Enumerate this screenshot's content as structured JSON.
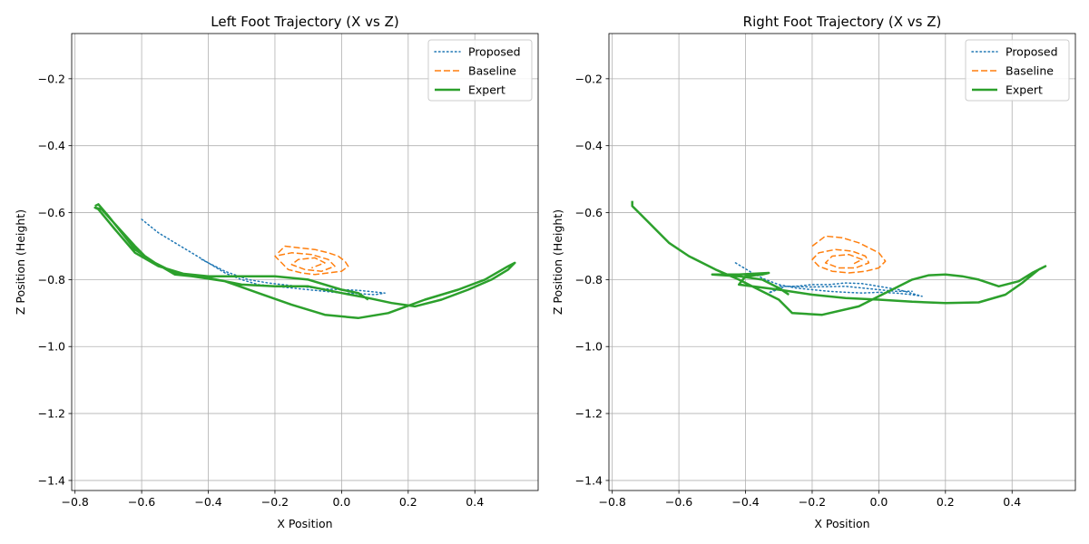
{
  "chart_data": [
    {
      "type": "line",
      "title": "Left Foot Trajectory (X vs Z)",
      "xlabel": "X Position",
      "ylabel": "Z Position (Height)",
      "xlim": [
        -0.81,
        0.59
      ],
      "ylim": [
        -1.43,
        -0.065
      ],
      "xticks": [
        -0.8,
        -0.6,
        -0.4,
        -0.2,
        0.0,
        0.2,
        0.4
      ],
      "xtick_labels": [
        "−0.8",
        "−0.6",
        "−0.4",
        "−0.2",
        "0.0",
        "0.2",
        "0.4"
      ],
      "yticks": [
        -0.2,
        -0.4,
        -0.6,
        -0.8,
        -1.0,
        -1.2,
        -1.4
      ],
      "ytick_labels": [
        "−0.2",
        "−0.4",
        "−0.6",
        "−0.8",
        "−1.0",
        "−1.2",
        "−1.4"
      ],
      "grid": true,
      "legend": "top-right",
      "series": [
        {
          "name": "Proposed",
          "color": "#1f77b4",
          "style": "dotted",
          "points": [
            [
              -0.6,
              -0.62
            ],
            [
              -0.55,
              -0.66
            ],
            [
              -0.5,
              -0.69
            ],
            [
              -0.45,
              -0.72
            ],
            [
              -0.4,
              -0.75
            ],
            [
              -0.35,
              -0.78
            ],
            [
              -0.3,
              -0.8
            ],
            [
              -0.25,
              -0.815
            ],
            [
              -0.2,
              -0.82
            ],
            [
              -0.15,
              -0.825
            ],
            [
              -0.1,
              -0.83
            ],
            [
              -0.05,
              -0.835
            ],
            [
              0.0,
              -0.84
            ],
            [
              0.05,
              -0.842
            ],
            [
              0.1,
              -0.845
            ],
            [
              0.13,
              -0.84
            ],
            [
              0.05,
              -0.832
            ],
            [
              -0.05,
              -0.828
            ],
            [
              -0.15,
              -0.818
            ],
            [
              -0.22,
              -0.81
            ],
            [
              -0.28,
              -0.8
            ],
            [
              -0.35,
              -0.775
            ],
            [
              -0.42,
              -0.74
            ]
          ]
        },
        {
          "name": "Baseline",
          "color": "#ff7f0e",
          "style": "dashed",
          "points": [
            [
              -0.19,
              -0.72
            ],
            [
              -0.17,
              -0.7
            ],
            [
              -0.13,
              -0.705
            ],
            [
              -0.08,
              -0.71
            ],
            [
              -0.04,
              -0.72
            ],
            [
              -0.01,
              -0.73
            ],
            [
              0.01,
              -0.745
            ],
            [
              0.02,
              -0.76
            ],
            [
              0.0,
              -0.775
            ],
            [
              -0.04,
              -0.78
            ],
            [
              -0.08,
              -0.785
            ],
            [
              -0.12,
              -0.78
            ],
            [
              -0.16,
              -0.77
            ],
            [
              -0.18,
              -0.75
            ],
            [
              -0.2,
              -0.73
            ],
            [
              -0.15,
              -0.72
            ],
            [
              -0.09,
              -0.725
            ],
            [
              -0.04,
              -0.74
            ],
            [
              -0.02,
              -0.76
            ],
            [
              -0.06,
              -0.775
            ],
            [
              -0.11,
              -0.77
            ],
            [
              -0.15,
              -0.755
            ],
            [
              -0.13,
              -0.74
            ],
            [
              -0.08,
              -0.735
            ],
            [
              -0.05,
              -0.75
            ],
            [
              -0.09,
              -0.765
            ]
          ]
        },
        {
          "name": "Expert",
          "color": "#2ca02c",
          "style": "solid",
          "points": [
            [
              -0.74,
              -0.58
            ],
            [
              -0.73,
              -0.575
            ],
            [
              -0.7,
              -0.61
            ],
            [
              -0.66,
              -0.66
            ],
            [
              -0.62,
              -0.71
            ],
            [
              -0.56,
              -0.75
            ],
            [
              -0.5,
              -0.785
            ],
            [
              -0.4,
              -0.795
            ],
            [
              -0.3,
              -0.815
            ],
            [
              -0.2,
              -0.82
            ],
            [
              -0.1,
              -0.82
            ],
            [
              0.0,
              -0.84
            ],
            [
              0.08,
              -0.855
            ],
            [
              0.15,
              -0.87
            ],
            [
              0.22,
              -0.88
            ],
            [
              0.3,
              -0.86
            ],
            [
              0.38,
              -0.83
            ],
            [
              0.45,
              -0.8
            ],
            [
              0.5,
              -0.77
            ],
            [
              0.52,
              -0.75
            ],
            [
              0.5,
              -0.76
            ],
            [
              0.43,
              -0.8
            ],
            [
              0.35,
              -0.83
            ],
            [
              0.25,
              -0.86
            ],
            [
              0.14,
              -0.9
            ],
            [
              0.05,
              -0.915
            ],
            [
              -0.05,
              -0.905
            ],
            [
              -0.15,
              -0.875
            ],
            [
              -0.25,
              -0.84
            ],
            [
              -0.35,
              -0.805
            ],
            [
              -0.45,
              -0.79
            ],
            [
              -0.55,
              -0.76
            ],
            [
              -0.62,
              -0.72
            ],
            [
              -0.68,
              -0.65
            ],
            [
              -0.73,
              -0.59
            ],
            [
              -0.74,
              -0.585
            ],
            [
              -0.72,
              -0.59
            ],
            [
              -0.62,
              -0.7
            ],
            [
              -0.58,
              -0.74
            ],
            [
              -0.5,
              -0.78
            ],
            [
              -0.4,
              -0.79
            ],
            [
              -0.3,
              -0.79
            ],
            [
              -0.2,
              -0.79
            ],
            [
              -0.1,
              -0.8
            ],
            [
              0.0,
              -0.83
            ],
            [
              0.05,
              -0.84
            ],
            [
              0.08,
              -0.86
            ]
          ]
        }
      ]
    },
    {
      "type": "line",
      "title": "Right Foot Trajectory (X vs Z)",
      "xlabel": "X Position",
      "ylabel": "Z Position (Height)",
      "xlim": [
        -0.81,
        0.59
      ],
      "ylim": [
        -1.43,
        -0.065
      ],
      "xticks": [
        -0.8,
        -0.6,
        -0.4,
        -0.2,
        0.0,
        0.2,
        0.4
      ],
      "xtick_labels": [
        "−0.8",
        "−0.6",
        "−0.4",
        "−0.2",
        "0.0",
        "0.2",
        "0.4"
      ],
      "yticks": [
        -0.2,
        -0.4,
        -0.6,
        -0.8,
        -1.0,
        -1.2,
        -1.4
      ],
      "ytick_labels": [
        "−0.2",
        "−0.4",
        "−0.6",
        "−0.8",
        "−1.0",
        "−1.2",
        "−1.4"
      ],
      "grid": true,
      "legend": "top-right",
      "series": [
        {
          "name": "Proposed",
          "color": "#1f77b4",
          "style": "dotted",
          "points": [
            [
              -0.43,
              -0.75
            ],
            [
              -0.38,
              -0.78
            ],
            [
              -0.34,
              -0.8
            ],
            [
              -0.3,
              -0.815
            ],
            [
              -0.25,
              -0.825
            ],
            [
              -0.2,
              -0.83
            ],
            [
              -0.15,
              -0.835
            ],
            [
              -0.1,
              -0.838
            ],
            [
              -0.05,
              -0.84
            ],
            [
              0.0,
              -0.838
            ],
            [
              0.05,
              -0.84
            ],
            [
              0.1,
              -0.845
            ],
            [
              0.13,
              -0.85
            ],
            [
              0.06,
              -0.83
            ],
            [
              0.0,
              -0.82
            ],
            [
              -0.05,
              -0.812
            ],
            [
              -0.1,
              -0.81
            ],
            [
              -0.15,
              -0.815
            ],
            [
              -0.2,
              -0.815
            ],
            [
              -0.25,
              -0.82
            ],
            [
              -0.3,
              -0.82
            ],
            [
              -0.33,
              -0.84
            ],
            [
              -0.28,
              -0.82
            ],
            [
              -0.2,
              -0.822
            ],
            [
              -0.1,
              -0.82
            ],
            [
              0.0,
              -0.83
            ],
            [
              0.05,
              -0.835
            ],
            [
              0.1,
              -0.835
            ]
          ]
        },
        {
          "name": "Baseline",
          "color": "#ff7f0e",
          "style": "dashed",
          "points": [
            [
              -0.2,
              -0.7
            ],
            [
              -0.16,
              -0.67
            ],
            [
              -0.11,
              -0.675
            ],
            [
              -0.06,
              -0.69
            ],
            [
              -0.03,
              -0.705
            ],
            [
              0.0,
              -0.72
            ],
            [
              0.02,
              -0.745
            ],
            [
              0.0,
              -0.765
            ],
            [
              -0.04,
              -0.775
            ],
            [
              -0.09,
              -0.78
            ],
            [
              -0.14,
              -0.775
            ],
            [
              -0.18,
              -0.76
            ],
            [
              -0.2,
              -0.74
            ],
            [
              -0.18,
              -0.72
            ],
            [
              -0.13,
              -0.71
            ],
            [
              -0.08,
              -0.715
            ],
            [
              -0.04,
              -0.73
            ],
            [
              -0.03,
              -0.75
            ],
            [
              -0.07,
              -0.765
            ],
            [
              -0.12,
              -0.765
            ],
            [
              -0.16,
              -0.75
            ],
            [
              -0.14,
              -0.73
            ],
            [
              -0.09,
              -0.725
            ],
            [
              -0.05,
              -0.74
            ],
            [
              -0.08,
              -0.755
            ]
          ]
        },
        {
          "name": "Expert",
          "color": "#2ca02c",
          "style": "solid",
          "points": [
            [
              -0.74,
              -0.565
            ],
            [
              -0.74,
              -0.58
            ],
            [
              -0.72,
              -0.6
            ],
            [
              -0.68,
              -0.64
            ],
            [
              -0.63,
              -0.69
            ],
            [
              -0.57,
              -0.73
            ],
            [
              -0.49,
              -0.77
            ],
            [
              -0.42,
              -0.8
            ],
            [
              -0.36,
              -0.83
            ],
            [
              -0.3,
              -0.86
            ],
            [
              -0.26,
              -0.9
            ],
            [
              -0.17,
              -0.905
            ],
            [
              -0.06,
              -0.88
            ],
            [
              0.0,
              -0.85
            ],
            [
              0.05,
              -0.825
            ],
            [
              0.1,
              -0.8
            ],
            [
              0.15,
              -0.787
            ],
            [
              0.2,
              -0.785
            ],
            [
              0.25,
              -0.79
            ],
            [
              0.3,
              -0.8
            ],
            [
              0.36,
              -0.82
            ],
            [
              0.42,
              -0.805
            ],
            [
              0.46,
              -0.78
            ],
            [
              0.49,
              -0.765
            ],
            [
              0.5,
              -0.76
            ],
            [
              0.48,
              -0.77
            ],
            [
              0.43,
              -0.81
            ],
            [
              0.38,
              -0.845
            ],
            [
              0.3,
              -0.868
            ],
            [
              0.2,
              -0.87
            ],
            [
              0.1,
              -0.866
            ],
            [
              0.0,
              -0.86
            ],
            [
              -0.1,
              -0.855
            ],
            [
              -0.2,
              -0.845
            ],
            [
              -0.3,
              -0.83
            ],
            [
              -0.42,
              -0.815
            ],
            [
              -0.4,
              -0.79
            ],
            [
              -0.35,
              -0.785
            ],
            [
              -0.33,
              -0.78
            ],
            [
              -0.42,
              -0.785
            ],
            [
              -0.5,
              -0.785
            ],
            [
              -0.42,
              -0.79
            ],
            [
              -0.35,
              -0.8
            ],
            [
              -0.3,
              -0.825
            ],
            [
              -0.27,
              -0.845
            ]
          ]
        }
      ]
    }
  ]
}
